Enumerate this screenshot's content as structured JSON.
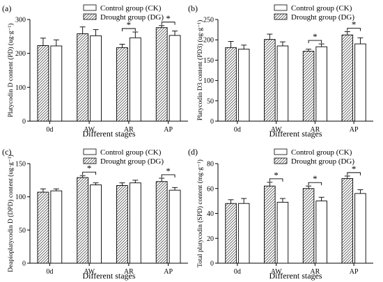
{
  "chart_data": [
    {
      "type": "bar",
      "panel_label": "(a)",
      "ylabel": "Platycodin D content (PD) (ug·g⁻¹)",
      "xlabel": "Different stages",
      "categories": [
        "0d",
        "AW",
        "AR",
        "AP"
      ],
      "ylim": [
        0,
        300
      ],
      "yticks": [
        "0",
        "100",
        "200",
        "300"
      ],
      "legend_position": "top",
      "series": [
        {
          "name": "Control group (CK)",
          "pattern": "open",
          "values": [
            222,
            252,
            246,
            253
          ],
          "errors": [
            18,
            18,
            17,
            13
          ]
        },
        {
          "name": "Drought group (DG)",
          "pattern": "hatched",
          "values": [
            223,
            258,
            217,
            276
          ],
          "errors": [
            22,
            20,
            10,
            6
          ]
        }
      ],
      "significance": [
        {
          "category": "AR",
          "label": "*"
        },
        {
          "category": "AP",
          "label": "*"
        }
      ]
    },
    {
      "type": "bar",
      "panel_label": "(b)",
      "ylabel": "Platycodin D3 content (PD3) (ug·g⁻¹)",
      "xlabel": "Different stages",
      "categories": [
        "0d",
        "AW",
        "AR",
        "AP"
      ],
      "ylim": [
        0,
        250
      ],
      "yticks": [
        "0",
        "50",
        "100",
        "150",
        "200",
        "250"
      ],
      "legend_position": "top",
      "series": [
        {
          "name": "Control group (CK)",
          "pattern": "open",
          "values": [
            177,
            185,
            183,
            190
          ],
          "errors": [
            10,
            10,
            7,
            15
          ]
        },
        {
          "name": "Drought group (DG)",
          "pattern": "hatched",
          "values": [
            181,
            201,
            172,
            212
          ],
          "errors": [
            15,
            13,
            5,
            8
          ]
        }
      ],
      "significance": [
        {
          "category": "AR",
          "label": "*"
        },
        {
          "category": "AP",
          "label": "*"
        }
      ]
    },
    {
      "type": "bar",
      "panel_label": "(c)",
      "ylabel": "Deapioplatycodin D (DPD) content (ug·g⁻¹)",
      "xlabel": "Different stages",
      "categories": [
        "0d",
        "AW",
        "AR",
        "AP"
      ],
      "ylim": [
        0,
        150
      ],
      "yticks": [
        "0",
        "50",
        "100",
        "150"
      ],
      "legend_position": "top",
      "series": [
        {
          "name": "Control group (CK)",
          "pattern": "open",
          "values": [
            109,
            118,
            121,
            110
          ],
          "errors": [
            3,
            3,
            4,
            4
          ]
        },
        {
          "name": "Drought group (DG)",
          "pattern": "hatched",
          "values": [
            107,
            129,
            117,
            123
          ],
          "errors": [
            5,
            3,
            4,
            5
          ]
        }
      ],
      "significance": [
        {
          "category": "AW",
          "label": "*"
        },
        {
          "category": "AP",
          "label": "*"
        }
      ]
    },
    {
      "type": "bar",
      "panel_label": "(d)",
      "ylabel": "Total platycodin (SPD) content (mg·g⁻¹)",
      "xlabel": "Different stages",
      "categories": [
        "0d",
        "AW",
        "AR",
        "AP"
      ],
      "ylim": [
        0,
        80
      ],
      "yticks": [
        "0",
        "20",
        "40",
        "60",
        "80"
      ],
      "legend_position": "top",
      "series": [
        {
          "name": "Control group (CK)",
          "pattern": "open",
          "values": [
            48,
            49,
            50,
            56
          ],
          "errors": [
            4,
            3,
            3,
            3
          ]
        },
        {
          "name": "Drought group (DG)",
          "pattern": "hatched",
          "values": [
            48,
            62,
            60,
            68
          ],
          "errors": [
            3,
            3,
            2,
            2
          ]
        }
      ],
      "significance": [
        {
          "category": "AW",
          "label": "*"
        },
        {
          "category": "AR",
          "label": "*"
        },
        {
          "category": "AP",
          "label": "*"
        }
      ]
    }
  ]
}
